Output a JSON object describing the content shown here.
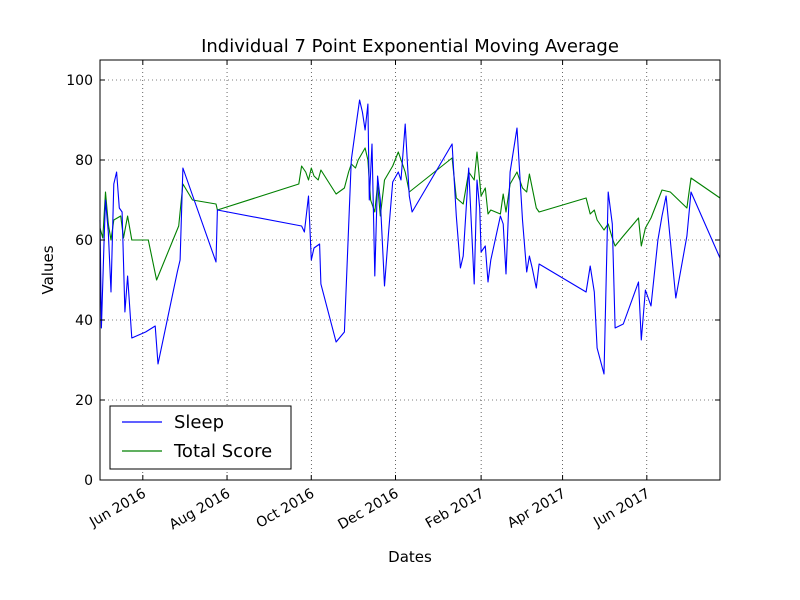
{
  "chart_data": {
    "type": "line",
    "title": "Individual 7 Point Exponential Moving Average",
    "xlabel": "Dates",
    "ylabel": "Values",
    "xlim": [
      "2016-05-01",
      "2017-07-24"
    ],
    "ylim": [
      0,
      105
    ],
    "yticks": [
      0,
      20,
      40,
      60,
      80,
      100
    ],
    "xticks": [
      {
        "date": "2016-06-01",
        "label": "Jun 2016"
      },
      {
        "date": "2016-08-01",
        "label": "Aug 2016"
      },
      {
        "date": "2016-10-01",
        "label": "Oct 2016"
      },
      {
        "date": "2016-12-01",
        "label": "Dec 2016"
      },
      {
        "date": "2017-02-01",
        "label": "Feb 2017"
      },
      {
        "date": "2017-04-01",
        "label": "Apr 2017"
      },
      {
        "date": "2017-06-01",
        "label": "Jun 2017"
      }
    ],
    "grid": true,
    "legend": "bottom-left",
    "series": [
      {
        "name": "Sleep",
        "color": "#0000ff",
        "points": [
          [
            "2016-05-01",
            65
          ],
          [
            "2016-05-02",
            38
          ],
          [
            "2016-05-04",
            60
          ],
          [
            "2016-05-05",
            70
          ],
          [
            "2016-05-07",
            62
          ],
          [
            "2016-05-09",
            47
          ],
          [
            "2016-05-11",
            74
          ],
          [
            "2016-05-13",
            77
          ],
          [
            "2016-05-15",
            68
          ],
          [
            "2016-05-17",
            67
          ],
          [
            "2016-05-19",
            42
          ],
          [
            "2016-05-21",
            51
          ],
          [
            "2016-05-24",
            35.5
          ],
          [
            "2016-06-03",
            37
          ],
          [
            "2016-06-10",
            38.5
          ],
          [
            "2016-06-12",
            29
          ],
          [
            "2016-06-26",
            52
          ],
          [
            "2016-06-28",
            55
          ],
          [
            "2016-06-30",
            78
          ],
          [
            "2016-07-24",
            54.5
          ],
          [
            "2016-07-25",
            67.5
          ],
          [
            "2016-09-24",
            63.5
          ],
          [
            "2016-09-26",
            62
          ],
          [
            "2016-09-29",
            71
          ],
          [
            "2016-10-01",
            55
          ],
          [
            "2016-10-03",
            58
          ],
          [
            "2016-10-07",
            59
          ],
          [
            "2016-10-08",
            49
          ],
          [
            "2016-10-19",
            34.5
          ],
          [
            "2016-10-25",
            37
          ],
          [
            "2016-10-30",
            80
          ],
          [
            "2016-11-03",
            90
          ],
          [
            "2016-11-05",
            95
          ],
          [
            "2016-11-07",
            92
          ],
          [
            "2016-11-09",
            87.5
          ],
          [
            "2016-11-11",
            94
          ],
          [
            "2016-11-12",
            70
          ],
          [
            "2016-11-14",
            84
          ],
          [
            "2016-11-16",
            51
          ],
          [
            "2016-11-18",
            76
          ],
          [
            "2016-11-20",
            70
          ],
          [
            "2016-11-23",
            48.5
          ],
          [
            "2016-11-26",
            62
          ],
          [
            "2016-11-29",
            74.5
          ],
          [
            "2016-12-03",
            77
          ],
          [
            "2016-12-05",
            75
          ],
          [
            "2016-12-08",
            89
          ],
          [
            "2016-12-11",
            71
          ],
          [
            "2016-12-13",
            67
          ],
          [
            "2017-01-11",
            84
          ],
          [
            "2017-01-14",
            66
          ],
          [
            "2017-01-17",
            53
          ],
          [
            "2017-01-19",
            56
          ],
          [
            "2017-01-23",
            78
          ],
          [
            "2017-01-27",
            49
          ],
          [
            "2017-01-29",
            75
          ],
          [
            "2017-01-31",
            68
          ],
          [
            "2017-02-01",
            57
          ],
          [
            "2017-02-04",
            58.5
          ],
          [
            "2017-02-06",
            49.5
          ],
          [
            "2017-02-08",
            55
          ],
          [
            "2017-02-15",
            66
          ],
          [
            "2017-02-17",
            64
          ],
          [
            "2017-02-19",
            51.5
          ],
          [
            "2017-02-22",
            77
          ],
          [
            "2017-02-27",
            88
          ],
          [
            "2017-03-03",
            65
          ],
          [
            "2017-03-06",
            52
          ],
          [
            "2017-03-08",
            56
          ],
          [
            "2017-03-10",
            53
          ],
          [
            "2017-03-13",
            48
          ],
          [
            "2017-03-15",
            54
          ],
          [
            "2017-04-18",
            47
          ],
          [
            "2017-04-21",
            53.5
          ],
          [
            "2017-04-24",
            47
          ],
          [
            "2017-04-26",
            33
          ],
          [
            "2017-05-01",
            26.5
          ],
          [
            "2017-05-04",
            72
          ],
          [
            "2017-05-07",
            64
          ],
          [
            "2017-05-09",
            38
          ],
          [
            "2017-05-15",
            39
          ],
          [
            "2017-05-26",
            49.5
          ],
          [
            "2017-05-28",
            35
          ],
          [
            "2017-05-31",
            47.5
          ],
          [
            "2017-06-04",
            43.5
          ],
          [
            "2017-06-09",
            60
          ],
          [
            "2017-06-12",
            66
          ],
          [
            "2017-06-15",
            71
          ],
          [
            "2017-06-22",
            45.5
          ],
          [
            "2017-06-30",
            61
          ],
          [
            "2017-07-03",
            72
          ],
          [
            "2017-07-24",
            55.5
          ]
        ]
      },
      {
        "name": "Total Score",
        "color": "#008000",
        "points": [
          [
            "2016-05-01",
            63
          ],
          [
            "2016-05-03",
            60.5
          ],
          [
            "2016-05-05",
            72
          ],
          [
            "2016-05-07",
            64
          ],
          [
            "2016-05-09",
            60
          ],
          [
            "2016-05-11",
            65
          ],
          [
            "2016-05-16",
            66
          ],
          [
            "2016-05-18",
            60.5
          ],
          [
            "2016-05-21",
            66
          ],
          [
            "2016-05-24",
            60
          ],
          [
            "2016-06-05",
            60
          ],
          [
            "2016-06-11",
            50
          ],
          [
            "2016-06-27",
            63.5
          ],
          [
            "2016-06-30",
            74
          ],
          [
            "2016-07-07",
            70
          ],
          [
            "2016-07-24",
            69
          ],
          [
            "2016-07-25",
            67.5
          ],
          [
            "2016-09-22",
            74
          ],
          [
            "2016-09-24",
            78.5
          ],
          [
            "2016-09-27",
            77
          ],
          [
            "2016-09-29",
            75
          ],
          [
            "2016-10-01",
            78
          ],
          [
            "2016-10-03",
            76
          ],
          [
            "2016-10-06",
            75
          ],
          [
            "2016-10-08",
            77.5
          ],
          [
            "2016-10-19",
            71.5
          ],
          [
            "2016-10-25",
            73
          ],
          [
            "2016-10-28",
            77
          ],
          [
            "2016-10-30",
            79
          ],
          [
            "2016-11-02",
            78
          ],
          [
            "2016-11-04",
            80
          ],
          [
            "2016-11-09",
            83
          ],
          [
            "2016-11-11",
            80
          ],
          [
            "2016-11-13",
            70
          ],
          [
            "2016-11-16",
            67
          ],
          [
            "2016-11-18",
            74
          ],
          [
            "2016-11-20",
            66
          ],
          [
            "2016-11-23",
            75
          ],
          [
            "2016-11-29",
            78.5
          ],
          [
            "2016-12-03",
            82
          ],
          [
            "2016-12-08",
            77
          ],
          [
            "2016-12-11",
            72
          ],
          [
            "2017-01-11",
            80.5
          ],
          [
            "2017-01-14",
            70.5
          ],
          [
            "2017-01-19",
            69
          ],
          [
            "2017-01-23",
            77
          ],
          [
            "2017-01-27",
            75
          ],
          [
            "2017-01-29",
            82
          ],
          [
            "2017-02-01",
            71
          ],
          [
            "2017-02-04",
            73
          ],
          [
            "2017-02-06",
            66.5
          ],
          [
            "2017-02-08",
            67.5
          ],
          [
            "2017-02-15",
            66.5
          ],
          [
            "2017-02-17",
            71.5
          ],
          [
            "2017-02-19",
            67
          ],
          [
            "2017-02-22",
            74
          ],
          [
            "2017-02-27",
            77
          ],
          [
            "2017-03-03",
            73
          ],
          [
            "2017-03-06",
            72
          ],
          [
            "2017-03-08",
            76.5
          ],
          [
            "2017-03-13",
            68
          ],
          [
            "2017-03-15",
            67
          ],
          [
            "2017-04-18",
            70.5
          ],
          [
            "2017-04-21",
            66.5
          ],
          [
            "2017-04-24",
            67.5
          ],
          [
            "2017-04-26",
            65
          ],
          [
            "2017-05-01",
            62.5
          ],
          [
            "2017-05-04",
            64
          ],
          [
            "2017-05-07",
            60.5
          ],
          [
            "2017-05-09",
            58.5
          ],
          [
            "2017-05-15",
            61
          ],
          [
            "2017-05-26",
            65.5
          ],
          [
            "2017-05-28",
            58.5
          ],
          [
            "2017-05-31",
            63
          ],
          [
            "2017-06-04",
            65.5
          ],
          [
            "2017-06-12",
            72.5
          ],
          [
            "2017-06-18",
            72
          ],
          [
            "2017-06-30",
            68
          ],
          [
            "2017-07-03",
            75.5
          ],
          [
            "2017-07-24",
            70.5
          ]
        ]
      }
    ]
  }
}
